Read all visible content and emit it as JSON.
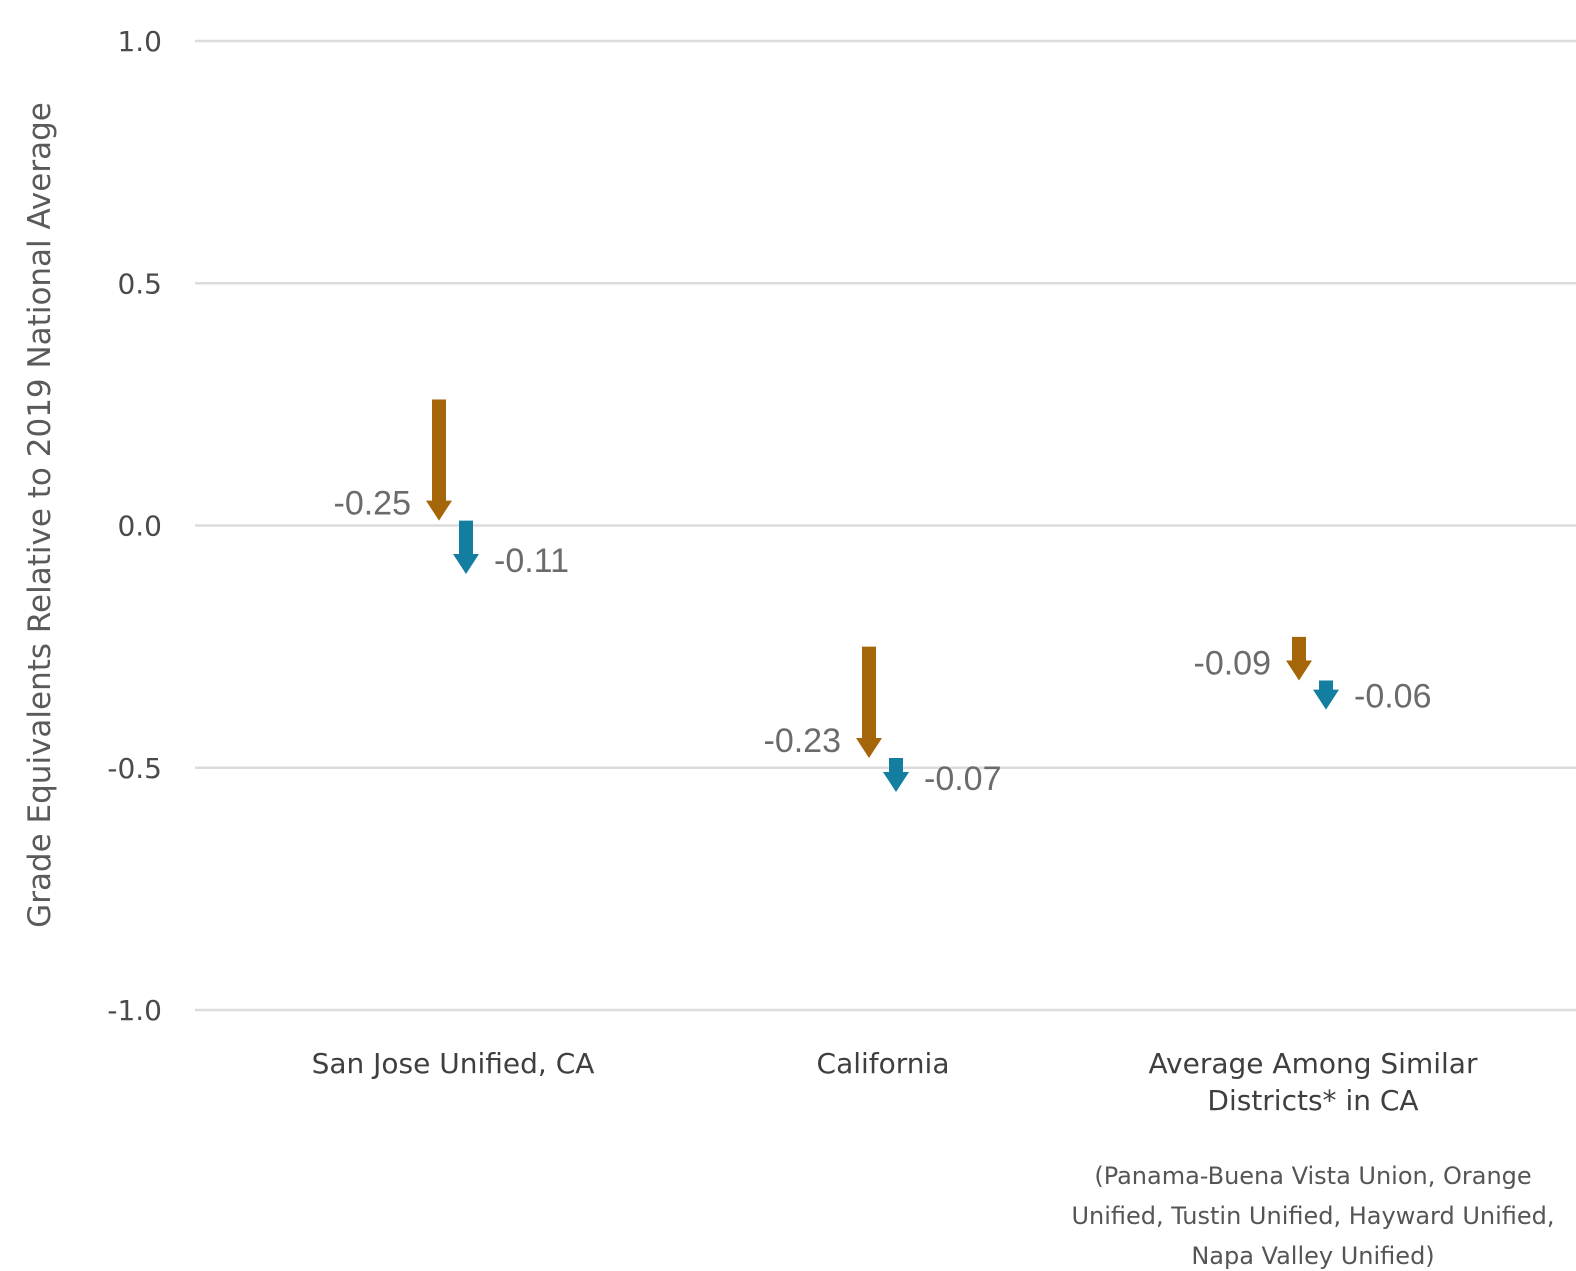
{
  "chart_data": {
    "type": "arrow",
    "ylabel": "Grade Equivalents Relative to 2019 National Average",
    "ylim": [
      -1.0,
      1.0
    ],
    "yticks": [
      "1.0",
      "0.5",
      "0.0",
      "-0.5",
      "-1.0"
    ],
    "grid": true,
    "categories": [
      {
        "lines": [
          "San Jose Unified, CA"
        ],
        "note": []
      },
      {
        "lines": [
          "California"
        ],
        "note": []
      },
      {
        "lines": [
          "Average Among Similar",
          "Districts* in CA"
        ],
        "note": [
          "(Panama-Buena Vista Union, Orange",
          "Unified, Tustin Unified, Hayward Unified,",
          "Napa Valley Unified)"
        ]
      }
    ],
    "series": [
      {
        "color": "#a5660a",
        "label_side": "left",
        "points": [
          {
            "from": 0.26,
            "to": 0.01,
            "label": "-0.25"
          },
          {
            "from": -0.25,
            "to": -0.48,
            "label": "-0.23"
          },
          {
            "from": -0.23,
            "to": -0.32,
            "label": "-0.09"
          }
        ]
      },
      {
        "color": "#137ea0",
        "label_side": "right",
        "points": [
          {
            "from": 0.01,
            "to": -0.1,
            "label": "-0.11"
          },
          {
            "from": -0.48,
            "to": -0.55,
            "label": "-0.07"
          },
          {
            "from": -0.32,
            "to": -0.38,
            "label": "-0.06"
          }
        ]
      }
    ]
  }
}
